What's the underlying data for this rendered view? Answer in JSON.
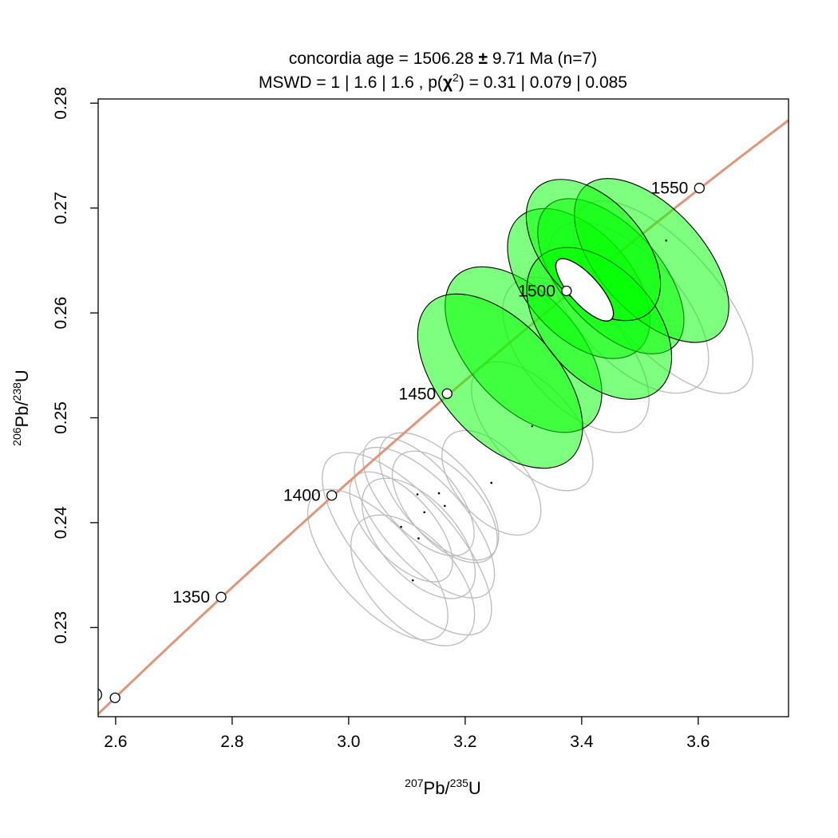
{
  "chart_data": {
    "type": "scatter",
    "title_line1_pre": "concordia age = 1506.28 ",
    "title_pm": "±",
    "title_line1_post": " 9.71 Ma (n=7)",
    "title_line2_pre": "MSWD = 1 | 1.6 | 1.6 , p(",
    "title_chi": "χ",
    "title_sup": "2",
    "title_line2_post": ") = 0.31 | 0.079 | 0.085",
    "xlabel": {
      "sup1": "207",
      "base1": "Pb/",
      "sup2": "235",
      "base2": "U"
    },
    "ylabel": {
      "sup1": "206",
      "base1": "Pb/",
      "sup2": "238",
      "base2": "U"
    },
    "xlim": [
      2.57,
      3.755
    ],
    "ylim": [
      0.2215,
      0.2804
    ],
    "x_ticks": [
      "2.6",
      "2.8",
      "3.0",
      "3.2",
      "3.4",
      "3.6"
    ],
    "y_ticks": [
      "0.23",
      "0.24",
      "0.25",
      "0.26",
      "0.27",
      "0.28"
    ],
    "concordia_color": "#e0967a",
    "accepted_fill": "#00ff00",
    "rejected_stroke": "#bbbbbb",
    "concordia_age_ticks": [
      {
        "age": 1300,
        "x": 2.599,
        "y": 0.2233,
        "label": ""
      },
      {
        "age": 1350,
        "x": 2.781,
        "y": 0.2329,
        "label": "1350"
      },
      {
        "age": 1400,
        "x": 2.971,
        "y": 0.2426,
        "label": "1400"
      },
      {
        "age": 1450,
        "x": 3.169,
        "y": 0.2523,
        "label": "1450"
      },
      {
        "age": 1500,
        "x": 3.374,
        "y": 0.2621,
        "label": "1500"
      },
      {
        "age": 1550,
        "x": 3.602,
        "y": 0.2719,
        "label": "1550"
      }
    ],
    "accepted_ellipses": [
      {
        "x": 3.3,
        "y": 0.2565,
        "rx": 0.095,
        "ry": 0.0095
      },
      {
        "x": 3.26,
        "y": 0.2535,
        "rx": 0.1,
        "ry": 0.01
      },
      {
        "x": 3.395,
        "y": 0.2628,
        "rx": 0.09,
        "ry": 0.0085
      },
      {
        "x": 3.45,
        "y": 0.2635,
        "rx": 0.085,
        "ry": 0.009
      },
      {
        "x": 3.52,
        "y": 0.265,
        "rx": 0.09,
        "ry": 0.0095
      },
      {
        "x": 3.43,
        "y": 0.259,
        "rx": 0.095,
        "ry": 0.0085
      },
      {
        "x": 3.42,
        "y": 0.266,
        "rx": 0.085,
        "ry": 0.008
      }
    ],
    "concordia_ellipse": {
      "x": 3.405,
      "y": 0.2622,
      "rx": 0.025,
      "ry": 0.0038
    },
    "rejected_ellipses": [
      {
        "x": 3.1,
        "y": 0.238,
        "rx": 0.08,
        "ry": 0.011
      },
      {
        "x": 3.05,
        "y": 0.236,
        "rx": 0.07,
        "ry": 0.009
      },
      {
        "x": 3.13,
        "y": 0.24,
        "rx": 0.07,
        "ry": 0.009
      },
      {
        "x": 3.11,
        "y": 0.2345,
        "rx": 0.075,
        "ry": 0.0075
      },
      {
        "x": 3.09,
        "y": 0.2396,
        "rx": 0.055,
        "ry": 0.0065
      },
      {
        "x": 3.12,
        "y": 0.2425,
        "rx": 0.06,
        "ry": 0.007
      },
      {
        "x": 3.12,
        "y": 0.2385,
        "rx": 0.065,
        "ry": 0.007
      },
      {
        "x": 3.155,
        "y": 0.2425,
        "rx": 0.065,
        "ry": 0.0075
      },
      {
        "x": 3.165,
        "y": 0.2415,
        "rx": 0.06,
        "ry": 0.0065
      },
      {
        "x": 3.245,
        "y": 0.2438,
        "rx": 0.06,
        "ry": 0.006
      },
      {
        "x": 3.315,
        "y": 0.2492,
        "rx": 0.07,
        "ry": 0.0075
      },
      {
        "x": 3.48,
        "y": 0.2605,
        "rx": 0.09,
        "ry": 0.01
      },
      {
        "x": 3.54,
        "y": 0.2615,
        "rx": 0.09,
        "ry": 0.0115
      },
      {
        "x": 3.39,
        "y": 0.256,
        "rx": 0.085,
        "ry": 0.009
      }
    ],
    "rejected_centers": [
      {
        "x": 3.11,
        "y": 0.2345
      },
      {
        "x": 3.09,
        "y": 0.2396
      },
      {
        "x": 3.12,
        "y": 0.2385
      },
      {
        "x": 3.118,
        "y": 0.2427
      },
      {
        "x": 3.13,
        "y": 0.241
      },
      {
        "x": 3.155,
        "y": 0.2428
      },
      {
        "x": 3.165,
        "y": 0.2416
      },
      {
        "x": 3.245,
        "y": 0.2438
      },
      {
        "x": 3.315,
        "y": 0.2492
      },
      {
        "x": 3.545,
        "y": 0.2669
      }
    ]
  }
}
